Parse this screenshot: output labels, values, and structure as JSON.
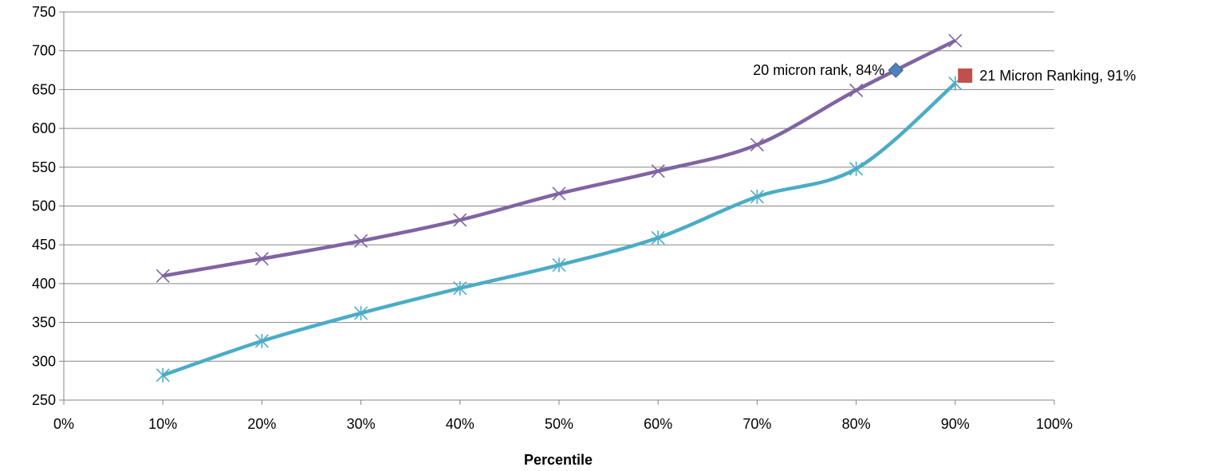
{
  "chart_data": {
    "type": "line",
    "title": "",
    "xlabel": "Percentile",
    "ylabel": "",
    "xlim": [
      0,
      100
    ],
    "ylim": [
      250,
      750
    ],
    "x_ticks": [
      0,
      10,
      20,
      30,
      40,
      50,
      60,
      70,
      80,
      90,
      100
    ],
    "x_tick_labels": [
      "0%",
      "10%",
      "20%",
      "30%",
      "40%",
      "50%",
      "60%",
      "70%",
      "80%",
      "90%",
      "100%"
    ],
    "y_ticks": [
      250,
      300,
      350,
      400,
      450,
      500,
      550,
      600,
      650,
      700,
      750
    ],
    "y_tick_labels": [
      "250",
      "300",
      "350",
      "400",
      "450",
      "500",
      "550",
      "600",
      "650",
      "700",
      "750"
    ],
    "grid": true,
    "legend": "none",
    "series": [
      {
        "color": "#8064a2",
        "marker": "x",
        "smooth": true,
        "x": [
          10,
          20,
          30,
          40,
          50,
          60,
          70,
          80,
          90
        ],
        "values": [
          410,
          432,
          455,
          482,
          516,
          545,
          579,
          649,
          713
        ]
      },
      {
        "color": "#4bacc6",
        "marker": "star",
        "smooth": true,
        "x": [
          10,
          20,
          30,
          40,
          50,
          60,
          70,
          80,
          90
        ],
        "values": [
          282,
          326,
          362,
          394,
          424,
          459,
          512,
          548,
          658
        ]
      }
    ],
    "points": [
      {
        "label": "20 micron rank, 84%",
        "x": 84,
        "y": 675,
        "color": "#4f81bd",
        "marker": "diamond",
        "label_side": "left"
      },
      {
        "label": "21 Micron Ranking, 91%",
        "x": 91,
        "y": 668,
        "color": "#c0504d",
        "marker": "square",
        "label_side": "right"
      }
    ]
  }
}
